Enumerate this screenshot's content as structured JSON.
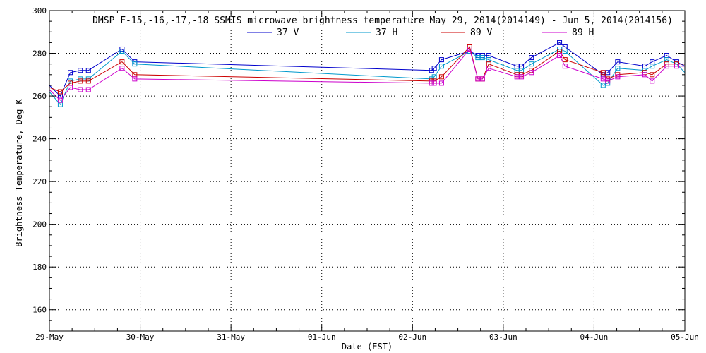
{
  "chart_data": {
    "type": "line",
    "title": "DMSP F-15,-16,-17,-18 SSMIS microwave brightness temperature May 29, 2014(2014149) - Jun  5, 2014(2014156)",
    "xlabel": "Date (EST)",
    "ylabel": "Brightness Temperature, Deg K",
    "x_ticks": [
      "29-May",
      "30-May",
      "31-May",
      "01-Jun",
      "02-Jun",
      "03-Jun",
      "04-Jun",
      "05-Jun"
    ],
    "xlim": [
      0,
      7
    ],
    "ylim": [
      150,
      300
    ],
    "y_ticks": [
      160,
      180,
      200,
      220,
      240,
      260,
      280,
      300
    ],
    "grid": true,
    "legend_position": "top-center",
    "series": [
      {
        "name": "37 V",
        "color": "#0000cc",
        "x": [
          0.0,
          0.12,
          0.23,
          0.34,
          0.43,
          0.8,
          0.94,
          4.21,
          4.24,
          4.32,
          4.63,
          4.72,
          4.77,
          4.84,
          5.15,
          5.2,
          5.31,
          5.62,
          5.68,
          6.1,
          6.15,
          6.26,
          6.56,
          6.64,
          6.8,
          6.91,
          7.0
        ],
        "values": [
          265,
          260,
          271,
          272,
          272,
          282,
          276,
          272,
          273,
          277,
          281,
          279,
          279,
          279,
          274,
          274,
          278,
          285,
          283,
          270,
          271,
          276,
          274,
          276,
          279,
          276,
          274
        ]
      },
      {
        "name": "37 H",
        "color": "#0099cc",
        "x": [
          0.0,
          0.12,
          0.23,
          0.34,
          0.43,
          0.8,
          0.94,
          4.21,
          4.24,
          4.32,
          4.63,
          4.72,
          4.77,
          4.84,
          5.15,
          5.2,
          5.31,
          5.62,
          5.68,
          6.1,
          6.15,
          6.26,
          6.56,
          6.64,
          6.8,
          6.91,
          7.0
        ],
        "values": [
          262,
          256,
          267,
          268,
          268,
          281,
          275,
          268,
          269,
          274,
          281,
          278,
          278,
          277,
          272,
          272,
          275,
          282,
          281,
          265,
          266,
          273,
          272,
          274,
          277,
          275,
          271
        ]
      },
      {
        "name": "89 V",
        "color": "#cc0000",
        "x": [
          0.0,
          0.12,
          0.23,
          0.34,
          0.43,
          0.8,
          0.94,
          4.21,
          4.24,
          4.32,
          4.63,
          4.72,
          4.77,
          4.84,
          5.15,
          5.2,
          5.31,
          5.62,
          5.68,
          6.1,
          6.15,
          6.26,
          6.56,
          6.64,
          6.8,
          6.91,
          7.0
        ],
        "values": [
          264,
          262,
          266,
          267,
          267,
          276,
          270,
          267,
          267,
          269,
          283,
          268,
          268,
          275,
          270,
          270,
          272,
          281,
          277,
          271,
          268,
          270,
          271,
          270,
          275,
          275,
          275
        ]
      },
      {
        "name": "89 H",
        "color": "#cc00cc",
        "x": [
          0.0,
          0.12,
          0.23,
          0.34,
          0.43,
          0.8,
          0.94,
          4.21,
          4.24,
          4.32,
          4.63,
          4.72,
          4.77,
          4.84,
          5.15,
          5.2,
          5.31,
          5.62,
          5.68,
          6.1,
          6.15,
          6.26,
          6.56,
          6.64,
          6.8,
          6.91,
          7.0
        ],
        "values": [
          263,
          258,
          264,
          263,
          263,
          273,
          268,
          266,
          266,
          266,
          282,
          268,
          268,
          273,
          269,
          269,
          271,
          279,
          274,
          268,
          267,
          269,
          270,
          267,
          274,
          274,
          274
        ]
      }
    ]
  }
}
